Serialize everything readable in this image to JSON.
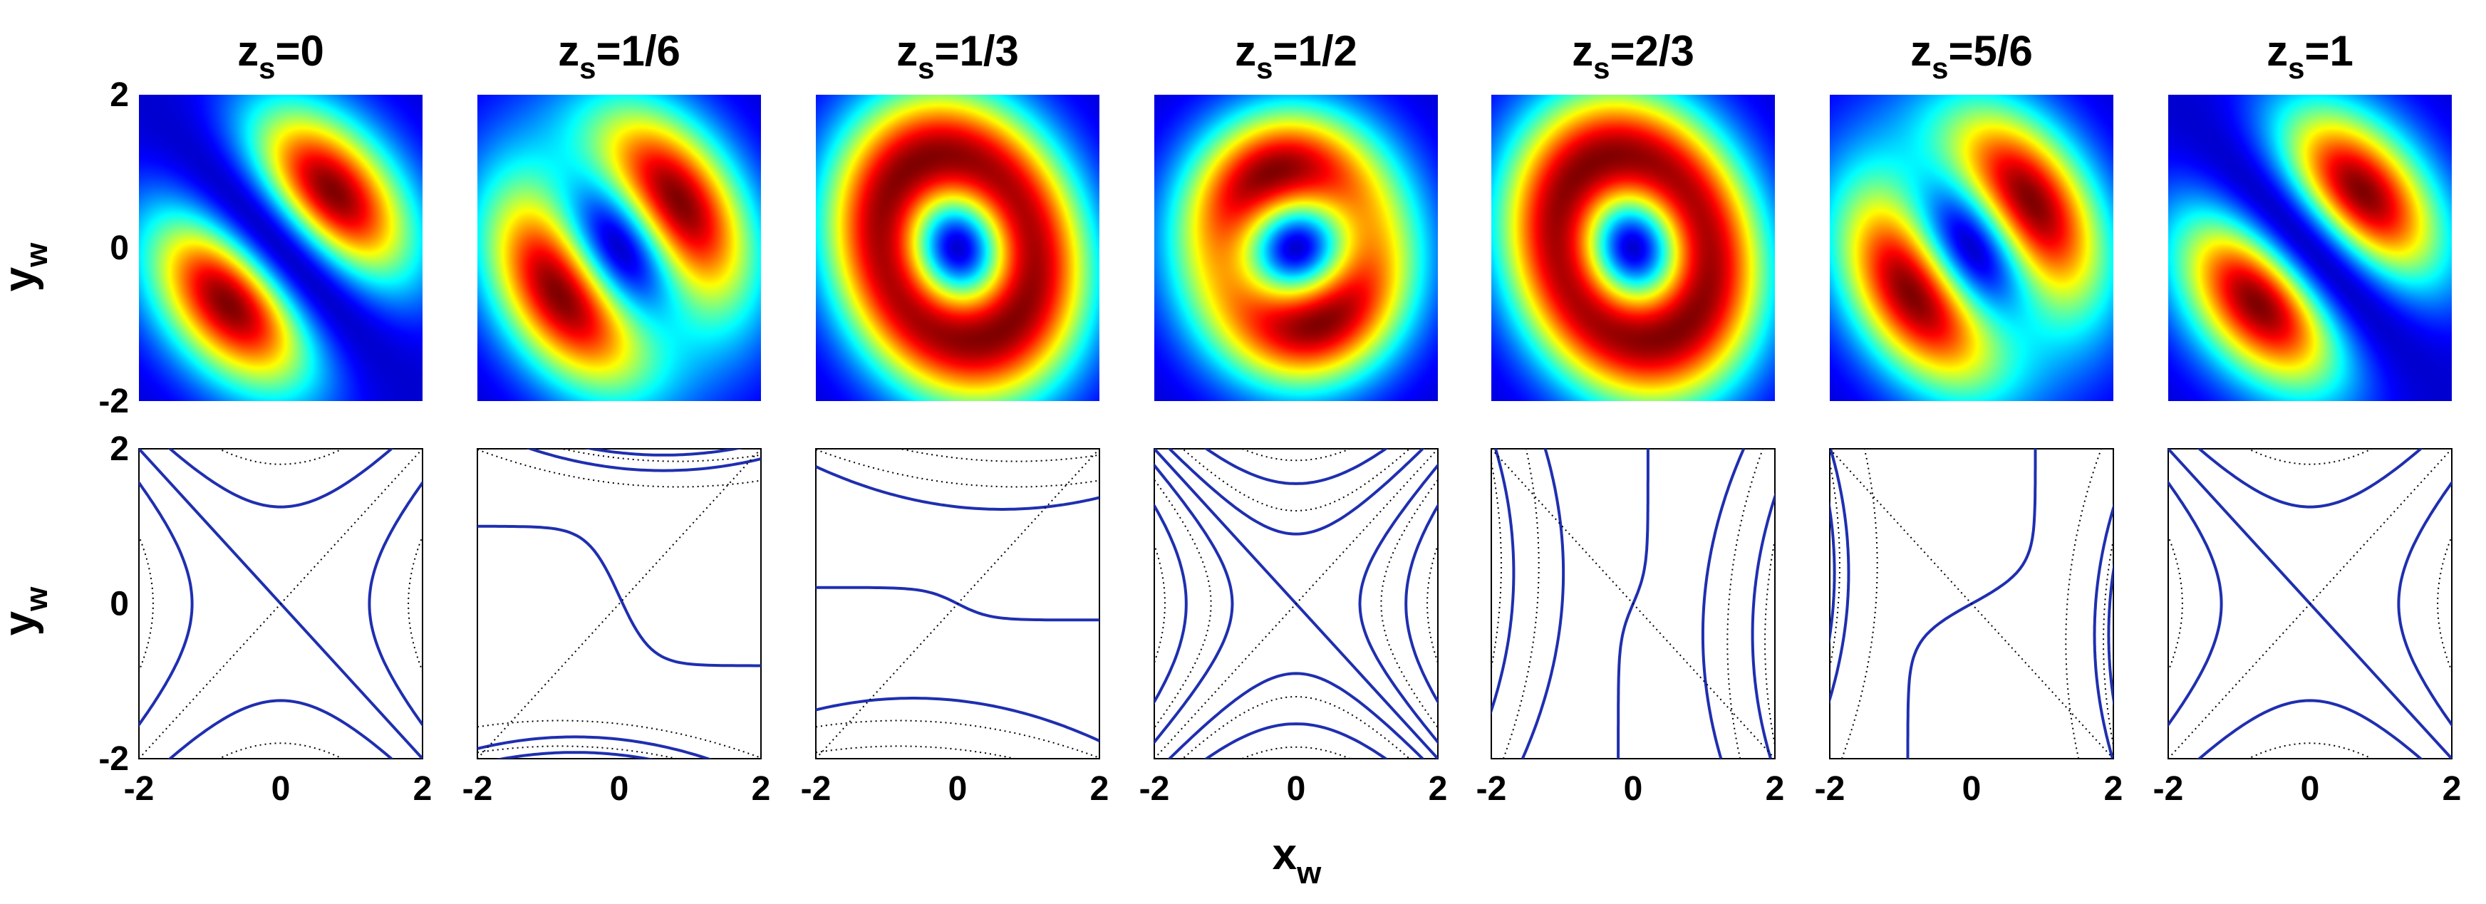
{
  "figure": {
    "xlabel": "x",
    "xlabel_sub": "w",
    "ylabel": "y",
    "ylabel_sub": "w"
  },
  "colors": {
    "background": "#00008f",
    "solid_contour": "#1f2fb0",
    "dotted_contour": "#000000"
  },
  "chart_data": {
    "type": "heatmap",
    "description_rows": [
      "intensity maps",
      "contour plots"
    ],
    "xlim": [
      -2,
      2
    ],
    "ylim": [
      -2,
      2
    ],
    "xticks": [
      "-2",
      "0",
      "2"
    ],
    "yticks": [
      "2",
      "0",
      "-2"
    ],
    "colormap": "jet",
    "panels": [
      {
        "title_prefix": "z",
        "title_sub": "s",
        "title_value": "=0",
        "t": 0
      },
      {
        "title_prefix": "z",
        "title_sub": "s",
        "title_value": "=1/6",
        "t": 0.1667
      },
      {
        "title_prefix": "z",
        "title_sub": "s",
        "title_value": "=1/3",
        "t": 0.3333
      },
      {
        "title_prefix": "z",
        "title_sub": "s",
        "title_value": "=1/2",
        "t": 0.5
      },
      {
        "title_prefix": "z",
        "title_sub": "s",
        "title_value": "=2/3",
        "t": 0.6667
      },
      {
        "title_prefix": "z",
        "title_sub": "s",
        "title_value": "=5/6",
        "t": 0.8333
      },
      {
        "title_prefix": "z",
        "title_sub": "s",
        "title_value": "=1",
        "t": 1
      }
    ]
  }
}
